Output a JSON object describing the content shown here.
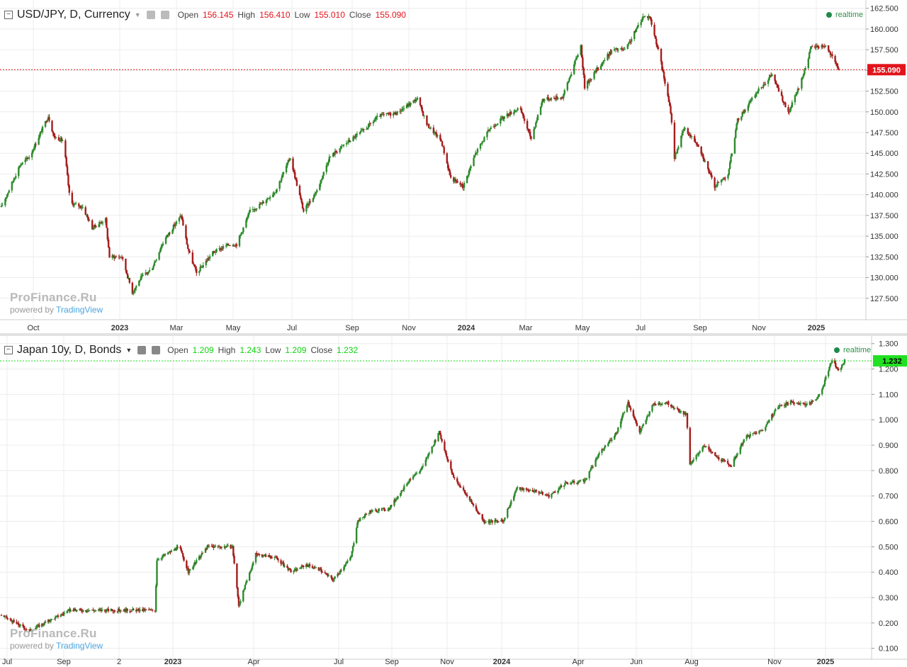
{
  "top": {
    "symbol": "USD/JPY, D, Currency",
    "open_label": "Open",
    "open": "156.145",
    "high_label": "High",
    "high": "156.410",
    "low_label": "Low",
    "low": "155.010",
    "close_label": "Close",
    "close": "155.090",
    "realtime": "realtime",
    "last_price": "155.090",
    "watermark": "ProFinance.Ru",
    "powered_by": "powered by",
    "tradingview": "TradingView"
  },
  "bottom": {
    "symbol": "Japan 10y, D, Bonds",
    "open_label": "Open",
    "open": "1.209",
    "high_label": "High",
    "high": "1.243",
    "low_label": "Low",
    "low": "1.209",
    "close_label": "Close",
    "close": "1.232",
    "realtime": "realtime",
    "last_price": "1.232",
    "watermark": "ProFinance.Ru",
    "powered_by": "powered by",
    "tradingview": "TradingView"
  },
  "colors": {
    "up": "#2e8b2e",
    "down": "#a51d1d",
    "top_price_line": "#e2141b",
    "bottom_price_line": "#17e017",
    "grid": "#ececec"
  },
  "chart_data": [
    {
      "type": "candlestick",
      "title": "USD/JPY, D, Currency",
      "ylim": [
        125.0,
        163.5
      ],
      "yticks": [
        "127.500",
        "130.000",
        "132.500",
        "135.000",
        "137.500",
        "140.000",
        "142.500",
        "145.000",
        "147.500",
        "150.000",
        "152.500",
        "155.000",
        "157.500",
        "160.000",
        "162.500"
      ],
      "x_tick_labels": [
        {
          "label": "Oct",
          "bold": false
        },
        {
          "label": "2023",
          "bold": true
        },
        {
          "label": "Mar",
          "bold": false
        },
        {
          "label": "May",
          "bold": false
        },
        {
          "label": "Jul",
          "bold": false
        },
        {
          "label": "Sep",
          "bold": false
        },
        {
          "label": "Nov",
          "bold": false
        },
        {
          "label": "2024",
          "bold": true
        },
        {
          "label": "Mar",
          "bold": false
        },
        {
          "label": "May",
          "bold": false
        },
        {
          "label": "Jul",
          "bold": false
        },
        {
          "label": "Sep",
          "bold": false
        },
        {
          "label": "Nov",
          "bold": false
        },
        {
          "label": "2025",
          "bold": true
        }
      ],
      "date_range": [
        "2022-09-01",
        "2025-01-24"
      ],
      "path": [
        [
          "2022-09-01",
          138.5
        ],
        [
          "2022-09-20",
          143.5
        ],
        [
          "2022-10-01",
          144.7
        ],
        [
          "2022-10-20",
          149.5
        ],
        [
          "2022-10-26",
          147.0
        ],
        [
          "2022-11-05",
          146.5
        ],
        [
          "2022-11-12",
          139.0
        ],
        [
          "2022-11-25",
          138.5
        ],
        [
          "2022-12-05",
          136.0
        ],
        [
          "2022-12-19",
          137.0
        ],
        [
          "2022-12-23",
          132.5
        ],
        [
          "2023-01-05",
          132.5
        ],
        [
          "2023-01-16",
          128.2
        ],
        [
          "2023-01-25",
          130.0
        ],
        [
          "2023-02-05",
          131.0
        ],
        [
          "2023-02-18",
          134.5
        ],
        [
          "2023-03-08",
          137.5
        ],
        [
          "2023-03-15",
          133.5
        ],
        [
          "2023-03-24",
          130.5
        ],
        [
          "2023-04-10",
          133.0
        ],
        [
          "2023-04-27",
          134.0
        ],
        [
          "2023-05-05",
          134.0
        ],
        [
          "2023-05-19",
          138.0
        ],
        [
          "2023-06-01",
          139.0
        ],
        [
          "2023-06-15",
          140.5
        ],
        [
          "2023-06-30",
          144.5
        ],
        [
          "2023-07-14",
          138.0
        ],
        [
          "2023-07-28",
          140.5
        ],
        [
          "2023-08-10",
          144.5
        ],
        [
          "2023-08-25",
          146.0
        ],
        [
          "2023-09-15",
          147.8
        ],
        [
          "2023-10-01",
          149.5
        ],
        [
          "2023-10-20",
          149.9
        ],
        [
          "2023-11-10",
          151.6
        ],
        [
          "2023-11-20",
          148.5
        ],
        [
          "2023-12-05",
          146.5
        ],
        [
          "2023-12-15",
          142.0
        ],
        [
          "2023-12-28",
          141.0
        ],
        [
          "2024-01-10",
          145.0
        ],
        [
          "2024-01-25",
          148.0
        ],
        [
          "2024-02-10",
          149.5
        ],
        [
          "2024-02-25",
          150.5
        ],
        [
          "2024-03-08",
          146.8
        ],
        [
          "2024-03-20",
          151.5
        ],
        [
          "2024-04-10",
          151.8
        ],
        [
          "2024-04-29",
          158.0
        ],
        [
          "2024-05-03",
          153.0
        ],
        [
          "2024-05-15",
          155.0
        ],
        [
          "2024-06-01",
          157.5
        ],
        [
          "2024-06-15",
          157.5
        ],
        [
          "2024-07-03",
          161.5
        ],
        [
          "2024-07-10",
          161.5
        ],
        [
          "2024-07-20",
          157.0
        ],
        [
          "2024-08-01",
          150.0
        ],
        [
          "2024-08-05",
          144.5
        ],
        [
          "2024-08-15",
          148.0
        ],
        [
          "2024-08-30",
          146.0
        ],
        [
          "2024-09-16",
          141.0
        ],
        [
          "2024-09-30",
          142.5
        ],
        [
          "2024-10-10",
          149.0
        ],
        [
          "2024-10-31",
          152.5
        ],
        [
          "2024-11-15",
          154.5
        ],
        [
          "2024-12-02",
          149.8
        ],
        [
          "2024-12-15",
          153.5
        ],
        [
          "2024-12-26",
          157.8
        ],
        [
          "2025-01-10",
          158.0
        ],
        [
          "2025-01-24",
          155.09
        ]
      ]
    },
    {
      "type": "candlestick",
      "title": "Japan 10y, D, Bonds",
      "ylim": [
        0.06,
        1.33
      ],
      "yticks": [
        "0.100",
        "0.200",
        "0.300",
        "0.400",
        "0.500",
        "0.600",
        "0.700",
        "0.800",
        "0.900",
        "1.000",
        "1.100",
        "1.200",
        "1.300"
      ],
      "x_tick_labels": [
        {
          "label": "Jul",
          "bold": false
        },
        {
          "label": "Sep",
          "bold": false
        },
        {
          "label": "2",
          "bold": false
        },
        {
          "label": "2023",
          "bold": true
        },
        {
          "label": "Apr",
          "bold": false
        },
        {
          "label": "Jul",
          "bold": false
        },
        {
          "label": "Sep",
          "bold": false
        },
        {
          "label": "Nov",
          "bold": false
        },
        {
          "label": "2024",
          "bold": true
        },
        {
          "label": "Apr",
          "bold": false
        },
        {
          "label": "Jun",
          "bold": false
        },
        {
          "label": "Aug",
          "bold": false
        },
        {
          "label": "Nov",
          "bold": false
        },
        {
          "label": "2025",
          "bold": true
        }
      ],
      "date_range": [
        "2022-07-01",
        "2025-01-24"
      ],
      "path": [
        [
          "2022-07-01",
          0.23
        ],
        [
          "2022-08-01",
          0.17
        ],
        [
          "2022-09-15",
          0.25
        ],
        [
          "2022-10-15",
          0.25
        ],
        [
          "2022-11-15",
          0.25
        ],
        [
          "2022-12-19",
          0.25
        ],
        [
          "2022-12-21",
          0.45
        ],
        [
          "2023-01-15",
          0.5
        ],
        [
          "2023-01-25",
          0.4
        ],
        [
          "2023-02-15",
          0.5
        ],
        [
          "2023-03-15",
          0.5
        ],
        [
          "2023-03-22",
          0.27
        ],
        [
          "2023-04-10",
          0.47
        ],
        [
          "2023-05-01",
          0.46
        ],
        [
          "2023-05-20",
          0.4
        ],
        [
          "2023-06-05",
          0.43
        ],
        [
          "2023-06-20",
          0.41
        ],
        [
          "2023-07-05",
          0.37
        ],
        [
          "2023-07-25",
          0.46
        ],
        [
          "2023-08-01",
          0.6
        ],
        [
          "2023-08-15",
          0.64
        ],
        [
          "2023-09-05",
          0.65
        ],
        [
          "2023-09-25",
          0.75
        ],
        [
          "2023-10-10",
          0.8
        ],
        [
          "2023-10-31",
          0.95
        ],
        [
          "2023-11-15",
          0.78
        ],
        [
          "2023-12-01",
          0.7
        ],
        [
          "2023-12-20",
          0.6
        ],
        [
          "2024-01-10",
          0.6
        ],
        [
          "2024-01-25",
          0.73
        ],
        [
          "2024-02-15",
          0.72
        ],
        [
          "2024-03-01",
          0.7
        ],
        [
          "2024-03-20",
          0.75
        ],
        [
          "2024-04-10",
          0.76
        ],
        [
          "2024-04-25",
          0.86
        ],
        [
          "2024-05-15",
          0.95
        ],
        [
          "2024-05-28",
          1.07
        ],
        [
          "2024-06-10",
          0.95
        ],
        [
          "2024-06-25",
          1.06
        ],
        [
          "2024-07-10",
          1.07
        ],
        [
          "2024-07-25",
          1.03
        ],
        [
          "2024-08-01",
          1.02
        ],
        [
          "2024-08-05",
          0.82
        ],
        [
          "2024-08-20",
          0.9
        ],
        [
          "2024-09-05",
          0.85
        ],
        [
          "2024-09-20",
          0.82
        ],
        [
          "2024-10-05",
          0.93
        ],
        [
          "2024-10-25",
          0.96
        ],
        [
          "2024-11-10",
          1.05
        ],
        [
          "2024-11-25",
          1.07
        ],
        [
          "2024-12-15",
          1.06
        ],
        [
          "2024-12-28",
          1.1
        ],
        [
          "2025-01-10",
          1.24
        ],
        [
          "2025-01-17",
          1.19
        ],
        [
          "2025-01-24",
          1.232
        ]
      ]
    }
  ]
}
